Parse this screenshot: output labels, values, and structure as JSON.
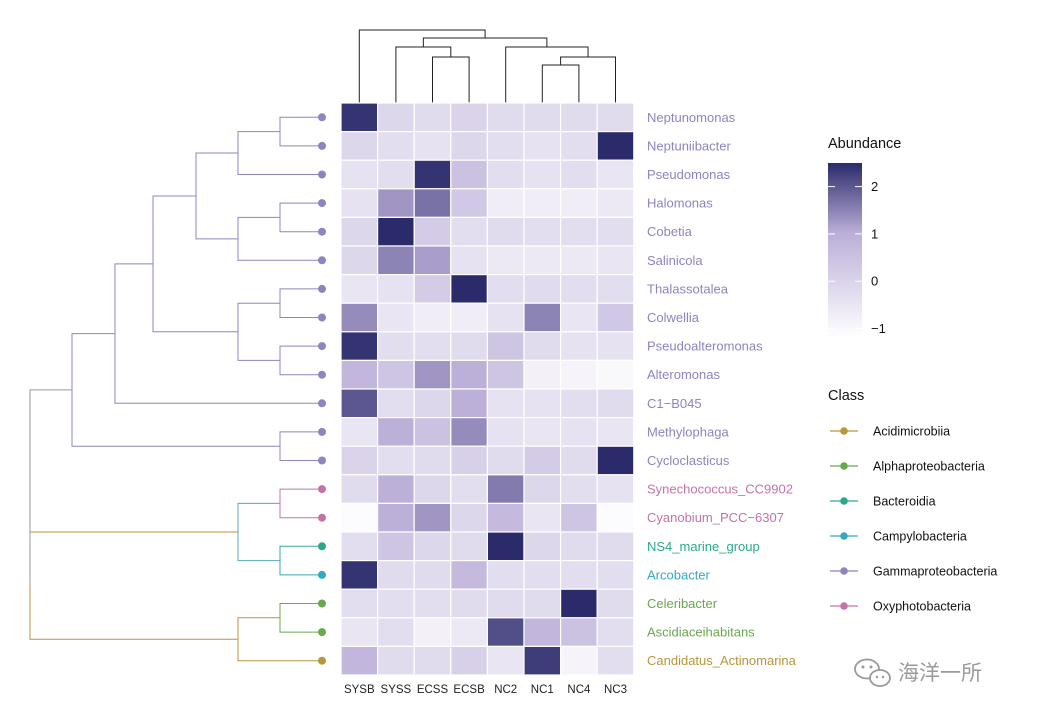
{
  "chart_data": {
    "type": "heatmap",
    "columns": [
      "SYSB",
      "SYSS",
      "ECSS",
      "ECSB",
      "NC2",
      "NC1",
      "NC4",
      "NC3"
    ],
    "rows": [
      {
        "name": "Neptunomonas",
        "class": "Gammaproteobacteria"
      },
      {
        "name": "Neptuniibacter",
        "class": "Gammaproteobacteria"
      },
      {
        "name": "Pseudomonas",
        "class": "Gammaproteobacteria"
      },
      {
        "name": "Halomonas",
        "class": "Gammaproteobacteria"
      },
      {
        "name": "Cobetia",
        "class": "Gammaproteobacteria"
      },
      {
        "name": "Salinicola",
        "class": "Gammaproteobacteria"
      },
      {
        "name": "Thalassotalea",
        "class": "Gammaproteobacteria"
      },
      {
        "name": "Colwellia",
        "class": "Gammaproteobacteria"
      },
      {
        "name": "Pseudoalteromonas",
        "class": "Gammaproteobacteria"
      },
      {
        "name": "Alteromonas",
        "class": "Gammaproteobacteria"
      },
      {
        "name": "C1−B045",
        "class": "Gammaproteobacteria"
      },
      {
        "name": "Methylophaga",
        "class": "Gammaproteobacteria"
      },
      {
        "name": "Cycloclasticus",
        "class": "Gammaproteobacteria"
      },
      {
        "name": "Synechococcus_CC9902",
        "class": "Oxyphotobacteria"
      },
      {
        "name": "Cyanobium_PCC−6307",
        "class": "Oxyphotobacteria"
      },
      {
        "name": "NS4_marine_group",
        "class": "Bacteroidia"
      },
      {
        "name": "Arcobacter",
        "class": "Campylobacteria"
      },
      {
        "name": "Celeribacter",
        "class": "Alphaproteobacteria"
      },
      {
        "name": "Ascidiaceihabitans",
        "class": "Alphaproteobacteria"
      },
      {
        "name": "Candidatus_Actinomarina",
        "class": "Acidimicrobiia"
      }
    ],
    "values": [
      [
        2.4,
        -0.1,
        -0.2,
        0.0,
        -0.2,
        -0.2,
        -0.2,
        -0.2
      ],
      [
        -0.1,
        -0.3,
        -0.4,
        -0.1,
        -0.3,
        -0.4,
        -0.3,
        2.5
      ],
      [
        -0.4,
        -0.3,
        2.4,
        0.5,
        -0.3,
        -0.4,
        -0.3,
        -0.5
      ],
      [
        -0.4,
        1.3,
        1.7,
        0.3,
        -0.7,
        -0.7,
        -0.7,
        -0.6
      ],
      [
        -0.1,
        2.5,
        0.2,
        -0.3,
        -0.2,
        -0.3,
        -0.3,
        -0.3
      ],
      [
        -0.1,
        1.5,
        1.2,
        -0.4,
        -0.6,
        -0.6,
        -0.6,
        -0.5
      ],
      [
        -0.5,
        -0.4,
        0.2,
        2.5,
        -0.3,
        -0.2,
        -0.3,
        -0.3
      ],
      [
        1.4,
        -0.5,
        -0.7,
        -0.7,
        -0.4,
        1.5,
        -0.5,
        0.3
      ],
      [
        2.4,
        -0.3,
        -0.3,
        -0.2,
        0.4,
        -0.2,
        -0.4,
        -0.4
      ],
      [
        0.8,
        0.4,
        1.3,
        1.0,
        0.4,
        -0.8,
        -0.9,
        -1.0
      ],
      [
        2.0,
        -0.3,
        -0.1,
        1.0,
        -0.4,
        -0.4,
        -0.3,
        -0.2
      ],
      [
        -0.5,
        1.0,
        0.5,
        1.4,
        -0.4,
        -0.5,
        -0.4,
        -0.5
      ],
      [
        0.0,
        -0.3,
        -0.2,
        0.1,
        -0.2,
        0.2,
        -0.2,
        2.5
      ],
      [
        -0.2,
        1.0,
        -0.1,
        -0.3,
        1.6,
        -0.1,
        -0.3,
        -0.4
      ],
      [
        -1.1,
        1.0,
        1.3,
        -0.1,
        0.7,
        -0.5,
        0.4,
        -1.1
      ],
      [
        -0.3,
        0.4,
        -0.1,
        -0.2,
        2.5,
        -0.1,
        -0.2,
        -0.2
      ],
      [
        2.4,
        -0.2,
        -0.2,
        0.7,
        -0.3,
        -0.3,
        -0.3,
        -0.3
      ],
      [
        -0.3,
        -0.3,
        -0.3,
        -0.2,
        -0.2,
        -0.2,
        2.5,
        -0.2
      ],
      [
        -0.5,
        -0.3,
        -0.8,
        -0.6,
        2.1,
        0.8,
        0.5,
        -0.3
      ],
      [
        0.8,
        -0.2,
        -0.2,
        0.1,
        -0.5,
        2.3,
        -0.9,
        -0.3
      ]
    ],
    "legend": {
      "abundance_title": "Abundance",
      "abundance_ticks": [
        "2",
        "1",
        "0",
        "−1"
      ],
      "abundance_tick_values": [
        2,
        1,
        0,
        -1
      ],
      "abundance_range": [
        -1.2,
        2.5
      ],
      "color_low": "#ffffff",
      "color_mid": "#bbaed8",
      "color_high": "#2b2b6b",
      "class_title": "Class",
      "classes": [
        {
          "name": "Acidimicrobiia",
          "color": "#b8963a"
        },
        {
          "name": "Alphaproteobacteria",
          "color": "#68a84e"
        },
        {
          "name": "Bacteroidia",
          "color": "#2ba88b"
        },
        {
          "name": "Campylobacteria",
          "color": "#35a9c4"
        },
        {
          "name": "Gammaproteobacteria",
          "color": "#8c85bf"
        },
        {
          "name": "Oxyphotobacteria",
          "color": "#c473a7"
        }
      ]
    },
    "grid": false
  },
  "watermark": {
    "text": "海洋一所"
  }
}
